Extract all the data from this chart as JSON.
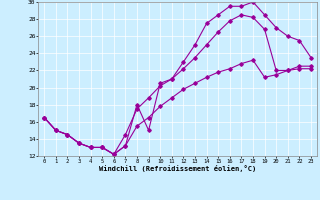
{
  "xlabel": "Windchill (Refroidissement éolien,°C)",
  "bg_color": "#cceeff",
  "line_color": "#990099",
  "ylim": [
    12,
    30
  ],
  "xlim": [
    -0.5,
    23.5
  ],
  "yticks": [
    12,
    14,
    16,
    18,
    20,
    22,
    24,
    26,
    28,
    30
  ],
  "xticks": [
    0,
    1,
    2,
    3,
    4,
    5,
    6,
    7,
    8,
    9,
    10,
    11,
    12,
    13,
    14,
    15,
    16,
    17,
    18,
    19,
    20,
    21,
    22,
    23
  ],
  "series1_x": [
    0,
    1,
    2,
    3,
    4,
    5,
    6,
    7,
    8,
    9,
    10,
    11,
    12,
    13,
    14,
    15,
    16,
    17,
    18,
    19,
    20,
    21,
    22,
    23
  ],
  "series1_y": [
    16.5,
    15.0,
    14.5,
    13.5,
    13.0,
    13.0,
    12.2,
    13.2,
    18.0,
    15.0,
    20.5,
    21.0,
    23.0,
    25.0,
    27.5,
    28.5,
    29.5,
    29.5,
    30.0,
    28.5,
    27.0,
    26.0,
    25.5,
    23.5
  ],
  "series2_x": [
    0,
    1,
    2,
    3,
    4,
    5,
    6,
    7,
    8,
    9,
    10,
    11,
    12,
    13,
    14,
    15,
    16,
    17,
    18,
    19,
    20,
    21,
    22,
    23
  ],
  "series2_y": [
    16.5,
    15.0,
    14.5,
    13.5,
    13.0,
    13.0,
    12.2,
    14.5,
    17.5,
    18.8,
    20.2,
    21.0,
    22.2,
    23.5,
    25.0,
    26.5,
    27.8,
    28.5,
    28.2,
    26.8,
    22.0,
    22.0,
    22.5,
    22.5
  ],
  "series3_x": [
    0,
    1,
    2,
    3,
    4,
    5,
    6,
    7,
    8,
    9,
    10,
    11,
    12,
    13,
    14,
    15,
    16,
    17,
    18,
    19,
    20,
    21,
    22,
    23
  ],
  "series3_y": [
    16.5,
    15.0,
    14.5,
    13.5,
    13.0,
    13.0,
    12.2,
    13.2,
    15.5,
    16.5,
    17.8,
    18.8,
    19.8,
    20.5,
    21.2,
    21.8,
    22.2,
    22.8,
    23.2,
    21.2,
    21.5,
    22.0,
    22.2,
    22.2
  ]
}
